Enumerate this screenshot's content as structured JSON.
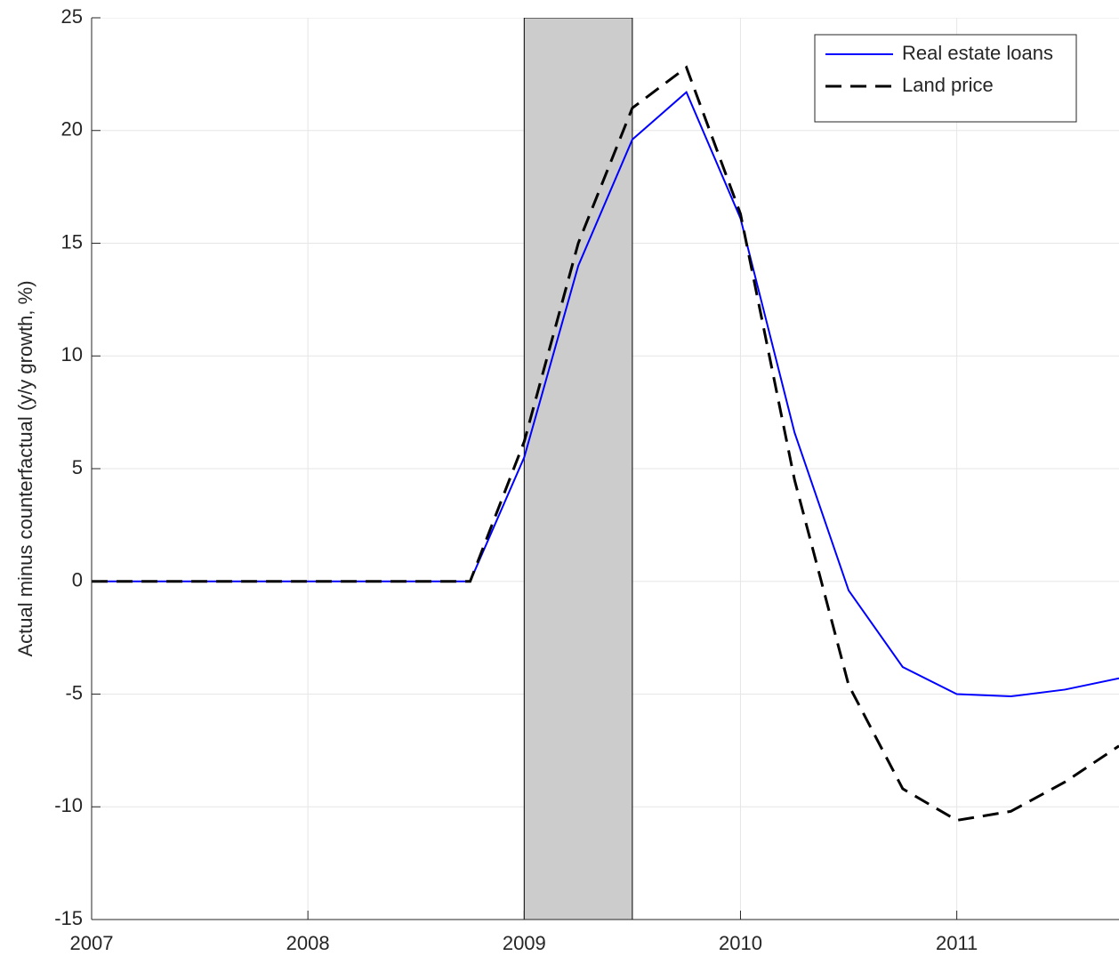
{
  "chart_data": {
    "type": "line",
    "y_label": "Actual minus counterfactual (y/y growth, %)",
    "x": [
      2007,
      2007.25,
      2007.5,
      2007.75,
      2008,
      2008.25,
      2008.5,
      2008.75,
      2009,
      2009.25,
      2009.5,
      2009.75,
      2010,
      2010.25,
      2010.5,
      2010.75,
      2011,
      2011.25,
      2011.5,
      2011.75
    ],
    "series": [
      {
        "name": "Real estate loans",
        "color": "#0000ff",
        "dash": "solid",
        "values": [
          0,
          0,
          0,
          0,
          0,
          0,
          0,
          0,
          5.5,
          14.0,
          19.6,
          21.7,
          16.1,
          6.6,
          -0.4,
          -3.8,
          -5.0,
          -5.1,
          -4.8,
          -4.3
        ]
      },
      {
        "name": "Land price",
        "color": "#000000",
        "dash": "dashed",
        "values": [
          0,
          0,
          0,
          0,
          0,
          0,
          0,
          0,
          6.2,
          15.0,
          21.0,
          22.8,
          16.3,
          4.5,
          -4.6,
          -9.2,
          -10.6,
          -10.2,
          -8.9,
          -7.3
        ]
      }
    ],
    "shaded_regions": [
      [
        2009,
        2009.5
      ]
    ],
    "shade_color": "#cccccc",
    "xlim": [
      2007,
      2011.75
    ],
    "xticks": [
      2007,
      2008,
      2009,
      2010,
      2011
    ],
    "ylim": [
      -15,
      25
    ],
    "yticks": [
      -15,
      -10,
      -5,
      0,
      5,
      10,
      15,
      20,
      25
    ],
    "grid": true,
    "legend": "upper right"
  }
}
